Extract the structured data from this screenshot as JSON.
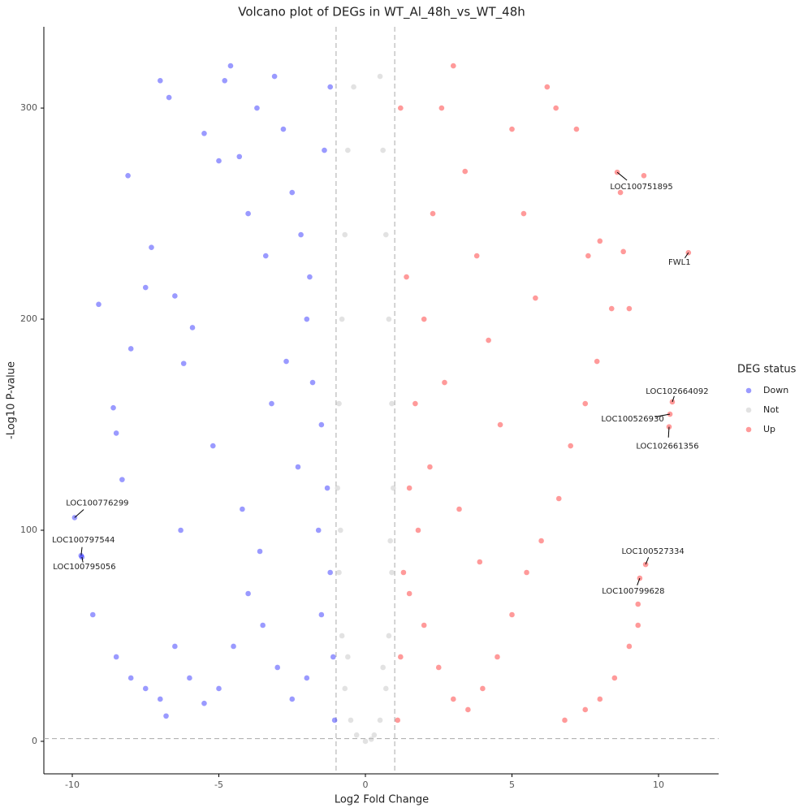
{
  "chart_data": {
    "type": "scatter",
    "title": "Volcano plot of DEGs in WT_Al_48h_vs_WT_48h",
    "x_label": "Log2 Fold Change",
    "y_label": "-Log10 P-value",
    "legend_title": "DEG status",
    "legend": "right",
    "xlim": [
      -10.97,
      12.05
    ],
    "ylim": [
      -15.4,
      338.5
    ],
    "xticks": [
      -10,
      -5,
      0,
      5,
      10
    ],
    "yticks": [
      0,
      100,
      200,
      300
    ],
    "vlines": [
      -1,
      1
    ],
    "hline": 1.3,
    "series": [
      {
        "name": "Down",
        "color": "#1f1fff",
        "x": [
          -8.1,
          -9.1,
          -7.5,
          -8.0,
          -8.6,
          -8.5,
          -8.3,
          -7.3,
          -7.0,
          -6.7,
          -6.5,
          -6.2,
          -5.9,
          -5.5,
          -5.0,
          -4.8,
          -4.6,
          -4.3,
          -4.0,
          -3.7,
          -3.4,
          -3.1,
          -2.8,
          -2.5,
          -2.2,
          -2.0,
          -1.8,
          -1.5,
          -1.3,
          -1.2,
          -1.1,
          -1.05,
          -1.5,
          -2.0,
          -2.5,
          -3.0,
          -3.5,
          -4.0,
          -4.5,
          -5.0,
          -5.5,
          -6.0,
          -6.5,
          -7.0,
          -7.5,
          -8.0,
          -8.5,
          -9.3,
          -6.8,
          -1.6,
          -2.3,
          -3.2,
          -1.9,
          -2.7,
          -1.4,
          -1.2,
          -6.3,
          -5.2,
          -4.2,
          -3.6
        ],
        "values": [
          268,
          207,
          215,
          186,
          158,
          146,
          124,
          234,
          313,
          305,
          211,
          179,
          196,
          288,
          275,
          313,
          320,
          277,
          250,
          300,
          230,
          315,
          290,
          260,
          240,
          200,
          170,
          150,
          120,
          80,
          40,
          10,
          60,
          30,
          20,
          35,
          55,
          70,
          45,
          25,
          18,
          30,
          45,
          20,
          25,
          30,
          40,
          60,
          12,
          100,
          130,
          160,
          220,
          180,
          280,
          310,
          100,
          140,
          110,
          90
        ],
        "annotations": [
          {
            "label": "LOC100776299",
            "x": -9.92,
            "y": 106
          },
          {
            "label": "LOC100797544",
            "x": -9.7,
            "y": 88
          },
          {
            "label": "LOC100795056",
            "x": -9.67,
            "y": 87.3
          }
        ]
      },
      {
        "name": "Not",
        "color": "#bebebe",
        "x": [
          0.0,
          -0.3,
          0.3,
          -0.5,
          0.5,
          -0.7,
          0.7,
          -0.8,
          0.8,
          -0.9,
          0.9,
          -0.95,
          0.95,
          -0.9,
          0.9,
          -0.8,
          0.8,
          -0.7,
          0.7,
          -0.6,
          0.6,
          -0.4,
          0.5,
          0.2,
          -0.6,
          0.6,
          -0.85,
          0.85
        ],
        "values": [
          0,
          3,
          3,
          10,
          10,
          25,
          25,
          50,
          50,
          80,
          80,
          120,
          120,
          160,
          160,
          200,
          200,
          240,
          240,
          280,
          280,
          310,
          315,
          1,
          40,
          35,
          100,
          95
        ],
        "annotations": []
      },
      {
        "name": "Up",
        "color": "#ff1f1f",
        "x": [
          1.1,
          1.2,
          1.3,
          1.5,
          1.7,
          2.0,
          2.3,
          2.6,
          3.0,
          3.4,
          3.8,
          4.2,
          4.6,
          5.0,
          5.4,
          5.8,
          6.2,
          6.5,
          7.2,
          7.6,
          8.0,
          8.4,
          7.9,
          7.5,
          7.0,
          6.6,
          6.0,
          5.5,
          5.0,
          4.5,
          4.0,
          3.5,
          3.0,
          2.5,
          2.0,
          1.5,
          1.8,
          2.2,
          2.7,
          3.2,
          3.9,
          6.8,
          7.5,
          8.0,
          8.5,
          9.0,
          9.3,
          8.7,
          9.5,
          8.8,
          9.0,
          9.3,
          1.4,
          1.2
        ],
        "values": [
          10,
          40,
          80,
          120,
          160,
          200,
          250,
          300,
          320,
          270,
          230,
          190,
          150,
          290,
          250,
          210,
          310,
          300,
          290,
          230,
          237,
          205,
          180,
          160,
          140,
          115,
          95,
          80,
          60,
          40,
          25,
          15,
          20,
          35,
          55,
          70,
          100,
          130,
          170,
          110,
          85,
          10,
          15,
          20,
          30,
          45,
          65,
          260,
          268,
          232,
          205,
          55,
          220,
          300
        ],
        "annotations": [
          {
            "label": "LOC100751895",
            "x": 8.59,
            "y": 269.6
          },
          {
            "label": "FWL1",
            "x": 11.02,
            "y": 231.5
          },
          {
            "label": "LOC102664092",
            "x": 10.47,
            "y": 160.8
          },
          {
            "label": "LOC100526930",
            "x": 10.39,
            "y": 155
          },
          {
            "label": "LOC102661356",
            "x": 10.36,
            "y": 149
          },
          {
            "label": "LOC100527334",
            "x": 9.56,
            "y": 83.8
          },
          {
            "label": "LOC100799628",
            "x": 9.36,
            "y": 77.3
          }
        ]
      }
    ]
  }
}
